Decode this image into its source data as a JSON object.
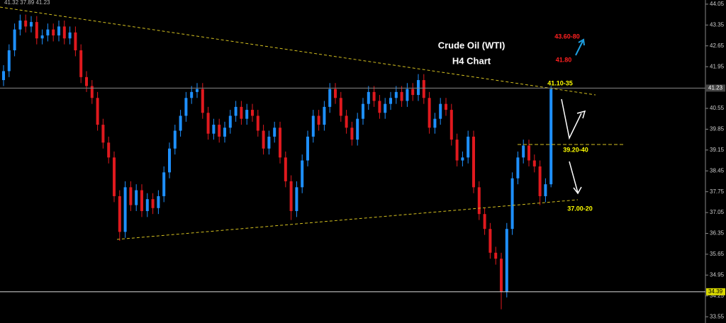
{
  "chart_data": {
    "type": "candlestick",
    "title": "Crude Oil (WTI)",
    "subtitle": "H4 Chart",
    "info": "41.32 37.89 41.23",
    "up_color": "#1e90ff",
    "down_color": "#e0191e",
    "ylim": [
      33.34,
      44.19
    ],
    "yticks": [
      44.05,
      43.35,
      42.65,
      41.95,
      40.55,
      39.85,
      39.15,
      38.45,
      37.75,
      37.05,
      36.35,
      35.65,
      34.95,
      34.25,
      33.55
    ],
    "price_lines": [
      41.23,
      34.39
    ],
    "annotations": [
      {
        "text": "43.60-80",
        "color": "#ff2020"
      },
      {
        "text": "41.80",
        "color": "#ff2020"
      },
      {
        "text": "41.10-35",
        "color": "#ffff00"
      },
      {
        "text": "39.20-40",
        "color": "#ffff00"
      },
      {
        "text": "37.00-20",
        "color": "#ffff00"
      }
    ],
    "open": [
      41.5,
      41.8,
      42.5,
      43.2,
      43.5,
      43.3,
      43.45,
      42.9,
      43.0,
      43.2,
      43.0,
      43.3,
      42.9,
      43.1,
      42.5,
      41.6,
      41.3,
      40.9,
      40.0,
      39.4,
      38.9,
      37.6,
      36.4,
      37.9,
      37.3,
      37.8,
      37.1,
      37.5,
      37.2,
      37.6,
      38.4,
      39.2,
      39.8,
      40.3,
      40.9,
      41.1,
      41.2,
      40.4,
      39.7,
      40.0,
      39.6,
      39.9,
      40.3,
      40.6,
      40.2,
      40.5,
      40.3,
      39.8,
      39.2,
      39.6,
      39.9,
      38.9,
      38.1,
      37.1,
      37.9,
      38.8,
      39.6,
      40.3,
      40.0,
      40.6,
      41.2,
      40.9,
      40.3,
      39.9,
      39.5,
      40.2,
      40.7,
      41.1,
      40.8,
      40.4,
      40.7,
      40.9,
      41.1,
      40.8,
      41.2,
      41.0,
      41.5,
      40.9,
      39.9,
      40.2,
      40.7,
      40.5,
      39.5,
      38.8,
      38.9,
      39.6,
      37.9,
      37.0,
      36.5,
      35.7,
      35.5,
      34.4,
      36.5,
      38.2,
      38.9,
      39.3,
      38.8,
      38.6,
      37.6,
      38.0
    ],
    "high": [
      42.0,
      42.7,
      43.4,
      43.7,
      43.7,
      43.65,
      43.65,
      43.2,
      43.4,
      43.4,
      43.5,
      43.5,
      43.3,
      43.3,
      42.7,
      41.8,
      41.5,
      41.1,
      40.2,
      39.6,
      39.1,
      37.8,
      38.1,
      38.1,
      38.0,
      38.0,
      37.7,
      37.7,
      37.8,
      38.6,
      39.4,
      40.0,
      40.5,
      41.1,
      41.3,
      41.4,
      41.4,
      40.6,
      40.2,
      40.2,
      40.1,
      40.5,
      40.8,
      40.8,
      40.7,
      40.7,
      40.5,
      40.0,
      39.8,
      40.1,
      40.1,
      39.1,
      38.3,
      38.1,
      39.0,
      39.8,
      40.5,
      40.5,
      40.8,
      41.4,
      41.4,
      41.1,
      40.5,
      40.1,
      40.4,
      40.9,
      41.3,
      41.3,
      41.0,
      40.9,
      41.1,
      41.3,
      41.3,
      41.4,
      41.4,
      41.7,
      41.7,
      41.1,
      40.4,
      40.9,
      40.9,
      40.7,
      39.7,
      39.1,
      39.8,
      39.8,
      38.1,
      37.2,
      36.7,
      35.9,
      35.7,
      36.7,
      38.4,
      39.1,
      39.5,
      39.5,
      39.0,
      38.8,
      38.2,
      41.3
    ],
    "low": [
      41.3,
      41.6,
      42.3,
      43.0,
      43.1,
      43.1,
      42.7,
      42.7,
      42.8,
      42.8,
      42.8,
      42.7,
      42.7,
      42.3,
      41.4,
      41.1,
      40.7,
      39.8,
      39.2,
      38.7,
      37.4,
      36.1,
      36.2,
      37.1,
      37.1,
      36.9,
      36.9,
      37.0,
      37.0,
      37.4,
      38.2,
      39.0,
      39.6,
      40.1,
      40.7,
      40.9,
      40.2,
      39.5,
      39.5,
      39.4,
      39.4,
      39.7,
      40.1,
      40.0,
      40.0,
      40.1,
      39.6,
      39.0,
      39.0,
      39.4,
      38.7,
      37.9,
      36.8,
      36.9,
      37.7,
      38.6,
      39.4,
      39.8,
      39.8,
      40.4,
      40.7,
      40.1,
      39.7,
      39.3,
      39.3,
      40.0,
      40.5,
      40.6,
      40.2,
      40.2,
      40.5,
      40.7,
      40.6,
      40.6,
      40.8,
      40.8,
      40.7,
      39.7,
      39.7,
      40.0,
      40.3,
      39.3,
      38.6,
      38.6,
      38.7,
      37.7,
      36.8,
      36.3,
      35.5,
      35.3,
      33.8,
      34.2,
      36.3,
      38.0,
      38.7,
      38.6,
      38.4,
      37.3,
      37.4,
      37.9
    ],
    "close": [
      41.8,
      42.5,
      43.2,
      43.5,
      43.3,
      43.45,
      42.9,
      43.0,
      43.2,
      43.0,
      43.3,
      42.9,
      43.1,
      42.5,
      41.6,
      41.3,
      40.9,
      40.0,
      39.4,
      38.9,
      37.6,
      36.4,
      37.9,
      37.3,
      37.8,
      37.1,
      37.5,
      37.2,
      37.6,
      38.4,
      39.2,
      39.8,
      40.3,
      40.9,
      41.1,
      41.2,
      40.4,
      39.7,
      40.0,
      39.6,
      39.9,
      40.3,
      40.6,
      40.2,
      40.5,
      40.3,
      39.8,
      39.2,
      39.6,
      39.9,
      38.9,
      38.1,
      37.1,
      37.9,
      38.8,
      39.6,
      40.3,
      40.0,
      40.6,
      41.2,
      40.9,
      40.3,
      39.9,
      39.5,
      40.2,
      40.7,
      41.1,
      40.8,
      40.4,
      40.7,
      40.9,
      41.1,
      40.8,
      41.2,
      41.0,
      41.5,
      40.9,
      39.9,
      40.2,
      40.7,
      40.5,
      39.5,
      38.8,
      38.9,
      39.6,
      37.9,
      37.0,
      36.5,
      35.7,
      35.5,
      34.4,
      36.5,
      38.2,
      38.9,
      39.3,
      38.8,
      38.6,
      37.6,
      38.0,
      41.2
    ]
  }
}
